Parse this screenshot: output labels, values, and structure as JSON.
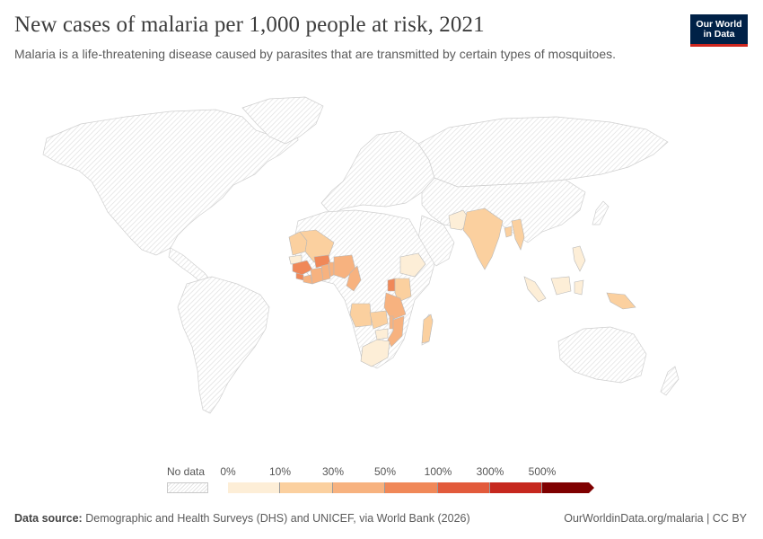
{
  "header": {
    "title": "New cases of malaria per 1,000 people at risk, 2021",
    "subtitle": "Malaria is a life-threatening disease caused by parasites that are transmitted by certain types of mosquitoes."
  },
  "logo": {
    "line1": "Our World",
    "line2": "in Data",
    "bg_color": "#002147",
    "accent_color": "#ce261e"
  },
  "legend": {
    "no_data_label": "No data",
    "ticks": [
      "0%",
      "10%",
      "30%",
      "50%",
      "100%",
      "300%",
      "500%"
    ],
    "bin_colors": [
      "#fdeed7",
      "#fbd09f",
      "#f7b27f",
      "#f08858",
      "#e25a3b",
      "#c6281e",
      "#7f0000"
    ]
  },
  "map": {
    "no_data_fill": "hatched-gray",
    "highlighted_regions": [
      {
        "region": "Mauritania",
        "bin": 1
      },
      {
        "region": "Mali",
        "bin": 1
      },
      {
        "region": "Senegal",
        "bin": 0
      },
      {
        "region": "Guinea",
        "bin": 3
      },
      {
        "region": "Sierra Leone",
        "bin": 3
      },
      {
        "region": "Liberia",
        "bin": 2
      },
      {
        "region": "Côte d'Ivoire",
        "bin": 2
      },
      {
        "region": "Burkina Faso",
        "bin": 3
      },
      {
        "region": "Ghana",
        "bin": 2
      },
      {
        "region": "Benin",
        "bin": 2
      },
      {
        "region": "Nigeria",
        "bin": 2
      },
      {
        "region": "Cameroon",
        "bin": 2
      },
      {
        "region": "Ethiopia",
        "bin": 0
      },
      {
        "region": "Uganda",
        "bin": 3
      },
      {
        "region": "Kenya",
        "bin": 1
      },
      {
        "region": "Tanzania",
        "bin": 2
      },
      {
        "region": "Angola",
        "bin": 1
      },
      {
        "region": "Zambia",
        "bin": 1
      },
      {
        "region": "Malawi",
        "bin": 2
      },
      {
        "region": "Mozambique",
        "bin": 2
      },
      {
        "region": "Zimbabwe",
        "bin": 0
      },
      {
        "region": "Madagascar",
        "bin": 1
      },
      {
        "region": "South Africa",
        "bin": 0
      },
      {
        "region": "Pakistan",
        "bin": 0
      },
      {
        "region": "India",
        "bin": 1
      },
      {
        "region": "Bangladesh",
        "bin": 1
      },
      {
        "region": "Myanmar",
        "bin": 1
      },
      {
        "region": "Philippines",
        "bin": 0
      },
      {
        "region": "Indonesia",
        "bin": 0
      },
      {
        "region": "Papua New Guinea",
        "bin": 1
      }
    ]
  },
  "footer": {
    "source_label": "Data source:",
    "source_text": "Demographic and Health Surveys (DHS) and UNICEF, via World Bank (2026)",
    "right_text": "OurWorldinData.org/malaria | CC BY"
  }
}
